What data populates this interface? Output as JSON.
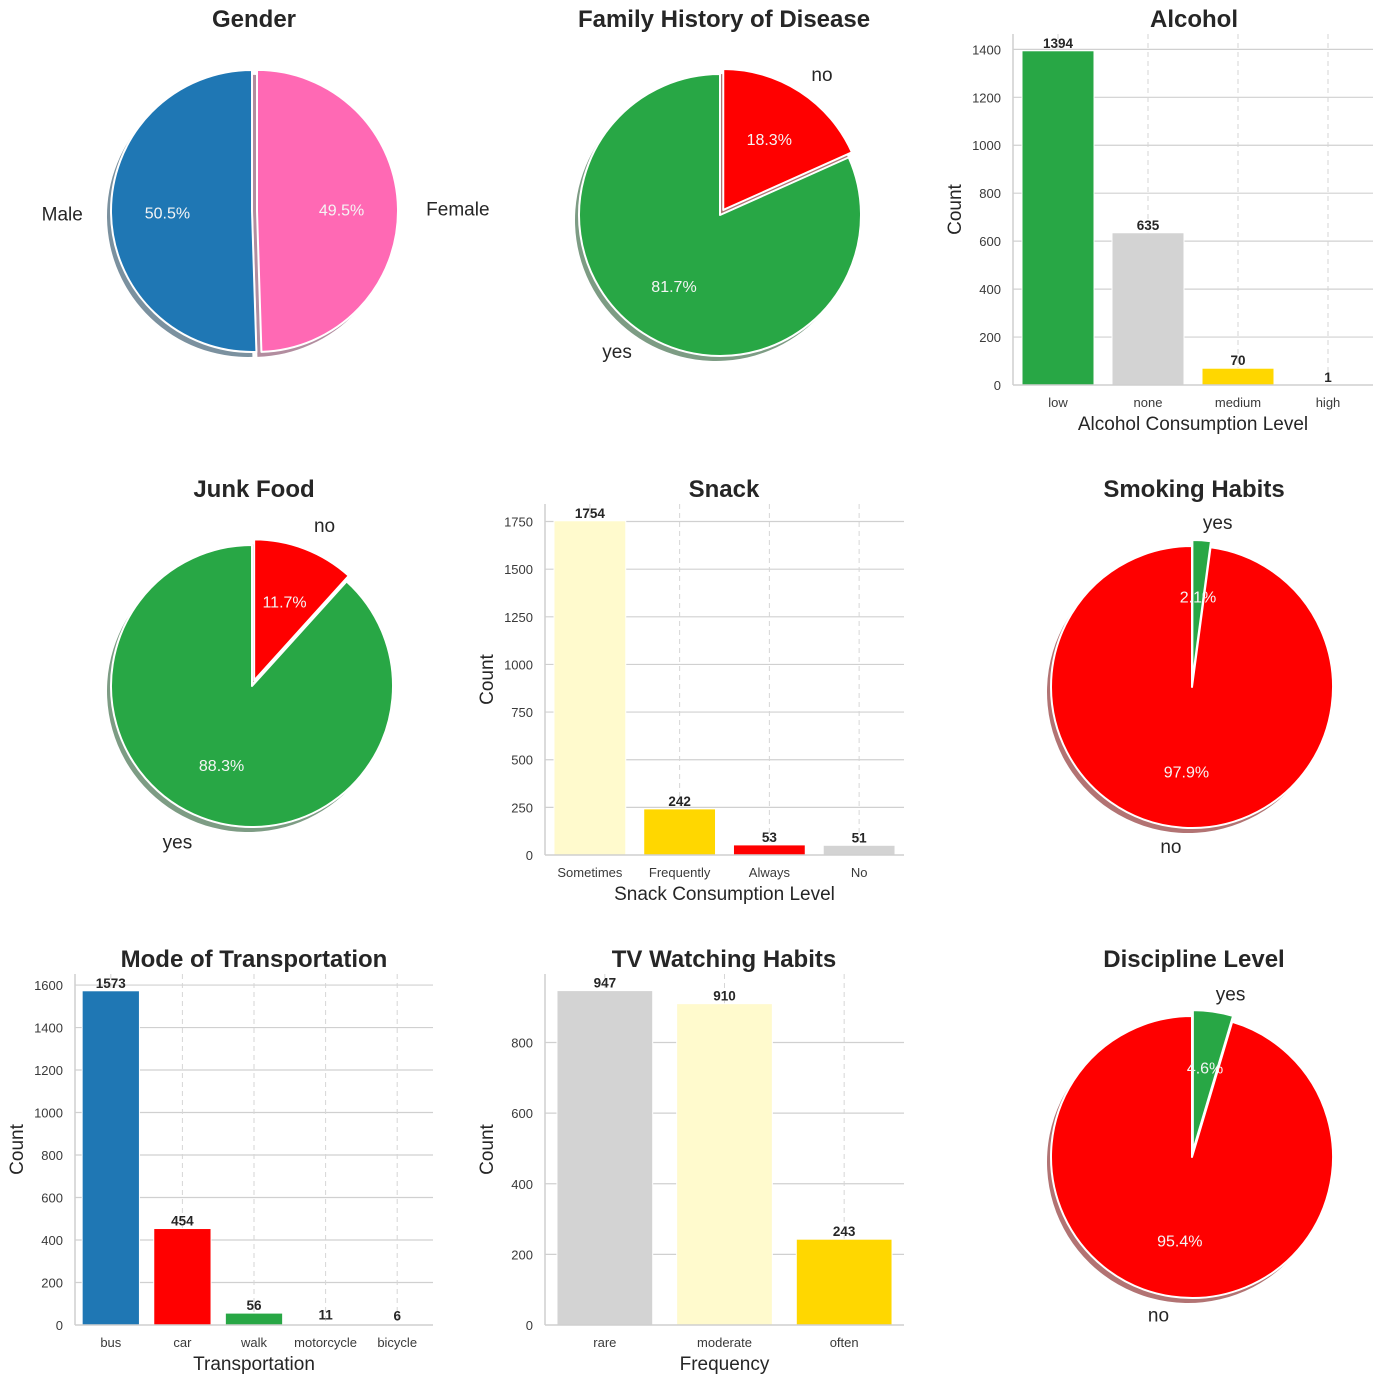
{
  "chart_data": [
    {
      "id": "gender",
      "type": "pie",
      "title": "Gender",
      "labels": [
        "Male",
        "Female"
      ],
      "values": [
        50.5,
        49.5
      ],
      "pct_labels": [
        "50.5%",
        "49.5%"
      ],
      "colors": [
        "#1f77b4",
        "#ff69b4"
      ],
      "explode": [
        0,
        1
      ],
      "start_angle_deg": 90,
      "shadow": true
    },
    {
      "id": "family-history",
      "type": "pie",
      "title": "Family History of Disease",
      "labels": [
        "yes",
        "no"
      ],
      "values": [
        81.7,
        18.3
      ],
      "pct_labels": [
        "81.7%",
        "18.3%"
      ],
      "colors": [
        "#28a745",
        "#ff0000"
      ],
      "explode": [
        0,
        1
      ],
      "start_angle_deg": 90,
      "shadow": true
    },
    {
      "id": "alcohol",
      "type": "bar",
      "title": "Alcohol",
      "categories": [
        "low",
        "none",
        "medium",
        "high"
      ],
      "values": [
        1394,
        635,
        70,
        1
      ],
      "colors": [
        "#28a745",
        "#d3d3d3",
        "#ffd700",
        "#ffffff"
      ],
      "xlabel": "Alcohol Consumption Level",
      "ylabel": "Count",
      "yticks": [
        0,
        200,
        400,
        600,
        800,
        1000,
        1200,
        1400
      ],
      "ylim": [
        0,
        1464
      ],
      "grid": true
    },
    {
      "id": "junk-food",
      "type": "pie",
      "title": "Junk Food",
      "labels": [
        "yes",
        "no"
      ],
      "values": [
        88.3,
        11.7
      ],
      "pct_labels": [
        "88.3%",
        "11.7%"
      ],
      "colors": [
        "#28a745",
        "#ff0000"
      ],
      "explode": [
        0,
        1
      ],
      "start_angle_deg": 90,
      "shadow": true
    },
    {
      "id": "snack",
      "type": "bar",
      "title": "Snack",
      "categories": [
        "Sometimes",
        "Frequently",
        "Always",
        "No"
      ],
      "values": [
        1754,
        242,
        53,
        51
      ],
      "colors": [
        "#fffacd",
        "#ffd700",
        "#ff0000",
        "#d3d3d3"
      ],
      "xlabel": "Snack Consumption Level",
      "ylabel": "Count",
      "yticks": [
        0,
        250,
        500,
        750,
        1000,
        1250,
        1500,
        1750
      ],
      "ylim": [
        0,
        1842
      ],
      "grid": true
    },
    {
      "id": "smoking",
      "type": "pie",
      "title": "Smoking Habits",
      "labels": [
        "no",
        "yes"
      ],
      "values": [
        97.9,
        2.1
      ],
      "pct_labels": [
        "97.9%",
        "2.1%"
      ],
      "colors": [
        "#ff0000",
        "#28a745"
      ],
      "explode": [
        0,
        1
      ],
      "start_angle_deg": 90,
      "shadow": true
    },
    {
      "id": "transportation",
      "type": "bar",
      "title": "Mode of Transportation",
      "categories": [
        "bus",
        "car",
        "walk",
        "motorcycle",
        "bicycle"
      ],
      "values": [
        1573,
        454,
        56,
        11,
        6
      ],
      "colors": [
        "#1f77b4",
        "#ff0000",
        "#28a745",
        "#ffffff",
        "#ffffff"
      ],
      "xlabel": "Transportation",
      "ylabel": "Count",
      "yticks": [
        0,
        200,
        400,
        600,
        800,
        1000,
        1200,
        1400,
        1600
      ],
      "ylim": [
        0,
        1652
      ],
      "grid": true
    },
    {
      "id": "tv-watching",
      "type": "bar",
      "title": "TV Watching Habits",
      "categories": [
        "rare",
        "moderate",
        "often"
      ],
      "values": [
        947,
        910,
        243
      ],
      "colors": [
        "#d3d3d3",
        "#fffacd",
        "#ffd700"
      ],
      "xlabel": "Frequency",
      "ylabel": "Count",
      "yticks": [
        0,
        200,
        400,
        600,
        800
      ],
      "ylim": [
        0,
        994
      ],
      "grid": true
    },
    {
      "id": "discipline",
      "type": "pie",
      "title": "Discipline Level",
      "labels": [
        "no",
        "yes"
      ],
      "values": [
        95.4,
        4.6
      ],
      "pct_labels": [
        "95.4%",
        "4.6%"
      ],
      "colors": [
        "#ff0000",
        "#28a745"
      ],
      "explode": [
        0,
        1
      ],
      "start_angle_deg": 90,
      "shadow": true
    }
  ]
}
